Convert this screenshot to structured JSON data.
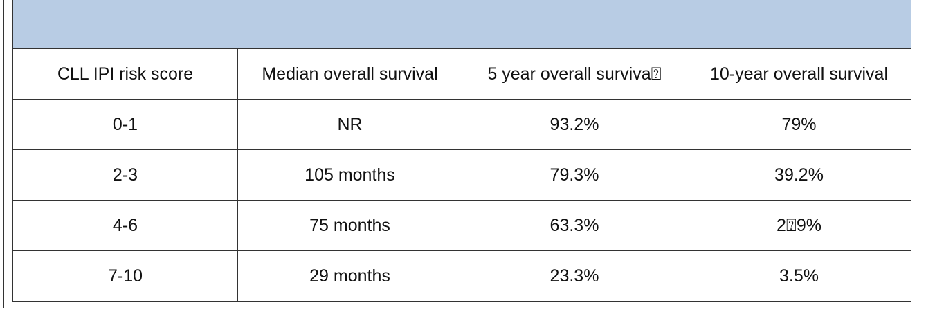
{
  "table": {
    "header": [
      "CLL IPI risk score",
      "Median overall survival",
      "5 year overall surviva⍰",
      "10-year overall survival"
    ],
    "rows": [
      [
        "0-1",
        "NR",
        "93.2%",
        "79%"
      ],
      [
        "2-3",
        "105 months",
        "79.3%",
        "39.2%"
      ],
      [
        "4-6",
        "75 months",
        "63.3%",
        "2⍰9%"
      ],
      [
        "7-10",
        "29 months",
        "23.3%",
        "3.5%"
      ]
    ]
  }
}
